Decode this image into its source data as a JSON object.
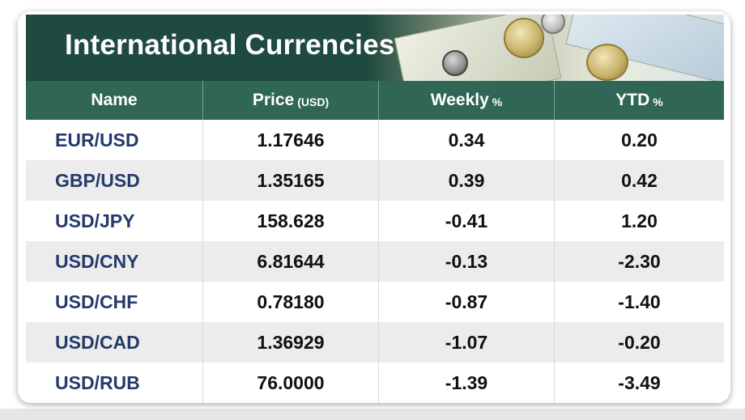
{
  "title": "International Currencies",
  "headers": {
    "name": "Name",
    "price": "Price",
    "price_unit": "(USD)",
    "weekly": "Weekly",
    "weekly_unit": "%",
    "ytd": "YTD",
    "ytd_unit": "%"
  },
  "rows": [
    {
      "name": "EUR/USD",
      "price": "1.17646",
      "weekly": "0.34",
      "ytd": "0.20"
    },
    {
      "name": "GBP/USD",
      "price": "1.35165",
      "weekly": "0.39",
      "ytd": "0.42"
    },
    {
      "name": "USD/JPY",
      "price": "158.628",
      "weekly": "-0.41",
      "ytd": "1.20"
    },
    {
      "name": "USD/CNY",
      "price": "6.81644",
      "weekly": "-0.13",
      "ytd": "-2.30"
    },
    {
      "name": "USD/CHF",
      "price": "0.78180",
      "weekly": "-0.87",
      "ytd": "-1.40"
    },
    {
      "name": "USD/CAD",
      "price": "1.36929",
      "weekly": "-1.07",
      "ytd": "-0.20"
    },
    {
      "name": "USD/RUB",
      "price": "76.0000",
      "weekly": "-1.39",
      "ytd": "-3.49"
    }
  ],
  "colors": {
    "title_bar": "#1f4a3f",
    "header_row": "#2f6656",
    "name_text": "#243a6b",
    "alt_row": "#ececec"
  },
  "decoration": "banknotes-and-coins-photo"
}
